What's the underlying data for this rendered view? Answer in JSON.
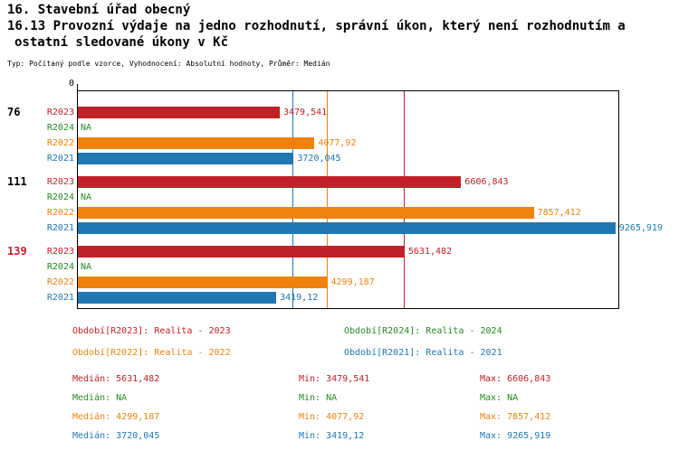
{
  "header": {
    "title_line1": "16. Stavební úřad obecný",
    "title_line2": "16.13 Provozní výdaje na jedno rozhodnutí, správní úkon, který není rozhodnutím a",
    "title_line3": "ostatní sledované úkony v Kč",
    "meta": "Typ: Počítaný podle vzorce, Vyhodnocení: Absolutní hodnoty, Průměr: Medián"
  },
  "chart_data": {
    "type": "bar",
    "orientation": "horizontal",
    "axis": {
      "min": 0,
      "max": 9300,
      "origin_tick_label": "0"
    },
    "series": [
      {
        "id": "R2023",
        "label": "R2023",
        "legend": "Období[R2023]: Realita - 2023",
        "color": "#c02128"
      },
      {
        "id": "R2024",
        "label": "R2024",
        "legend": "Období[R2024]: Realita - 2024",
        "color": "#228b22"
      },
      {
        "id": "R2022",
        "label": "R2022",
        "legend": "Období[R2022]: Realita - 2022",
        "color": "#ef820d"
      },
      {
        "id": "R2021",
        "label": "R2021",
        "legend": "Období[R2021]: Realita - 2021",
        "color": "#1f77b4"
      }
    ],
    "groups": [
      {
        "label": "76",
        "label_color": "#000000",
        "bars": [
          {
            "series": "R2023",
            "value": 3479.541,
            "display": "3479,541"
          },
          {
            "series": "R2024",
            "value": null,
            "display": "NA"
          },
          {
            "series": "R2022",
            "value": 4077.92,
            "display": "4077,92"
          },
          {
            "series": "R2021",
            "value": 3720.045,
            "display": "3720,045"
          }
        ]
      },
      {
        "label": "111",
        "label_color": "#000000",
        "bars": [
          {
            "series": "R2023",
            "value": 6606.843,
            "display": "6606,843"
          },
          {
            "series": "R2024",
            "value": null,
            "display": "NA"
          },
          {
            "series": "R2022",
            "value": 7857.412,
            "display": "7857,412"
          },
          {
            "series": "R2021",
            "value": 9265.919,
            "display": "9265,919"
          }
        ]
      },
      {
        "label": "139",
        "label_color": "#c02128",
        "bars": [
          {
            "series": "R2023",
            "value": 5631.482,
            "display": "5631,482"
          },
          {
            "series": "R2024",
            "value": null,
            "display": "NA"
          },
          {
            "series": "R2022",
            "value": 4299.187,
            "display": "4299,187"
          },
          {
            "series": "R2021",
            "value": 3419.12,
            "display": "3419,12"
          }
        ]
      }
    ],
    "median_lines": [
      {
        "series": "R2023",
        "value": 5631.482
      },
      {
        "series": "R2022",
        "value": 4299.187
      },
      {
        "series": "R2021",
        "value": 3720.045
      }
    ],
    "legend_order": [
      "R2023",
      "R2024",
      "R2022",
      "R2021"
    ],
    "stats_labels": {
      "median": "Medián",
      "min": "Min",
      "max": "Max"
    },
    "stats": [
      {
        "series": "R2023",
        "median": "5631,482",
        "min": "3479,541",
        "max": "6606,843"
      },
      {
        "series": "R2024",
        "median": "NA",
        "min": "NA",
        "max": "NA"
      },
      {
        "series": "R2022",
        "median": "4299,187",
        "min": "4077,92",
        "max": "7857,412"
      },
      {
        "series": "R2021",
        "median": "3720,045",
        "min": "3419,12",
        "max": "9265,919"
      }
    ]
  }
}
